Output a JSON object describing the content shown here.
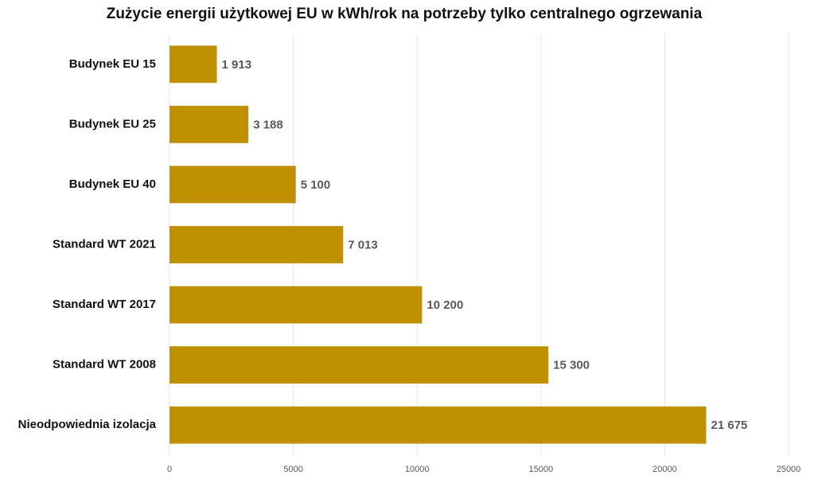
{
  "chart_data": {
    "type": "bar",
    "orientation": "horizontal",
    "title": "Zużycie energii użytkowej EU w kWh/rok na potrzeby tylko centralnego ogrzewania",
    "categories": [
      "Budynek EU 15",
      "Budynek EU 25",
      "Budynek EU 40",
      "Standard WT 2021",
      "Standard WT 2017",
      "Standard WT 2008",
      "Nieodpowiednia izolacja"
    ],
    "values": [
      1913,
      3188,
      5100,
      7013,
      10200,
      15300,
      21675
    ],
    "value_labels": [
      "1 913",
      "3 188",
      "5 100",
      "7 013",
      "10 200",
      "15 300",
      "21 675"
    ],
    "color": "#bf9000",
    "xlim": [
      0,
      25000
    ],
    "xticks": [
      0,
      5000,
      10000,
      15000,
      20000,
      25000
    ],
    "grid": true
  }
}
